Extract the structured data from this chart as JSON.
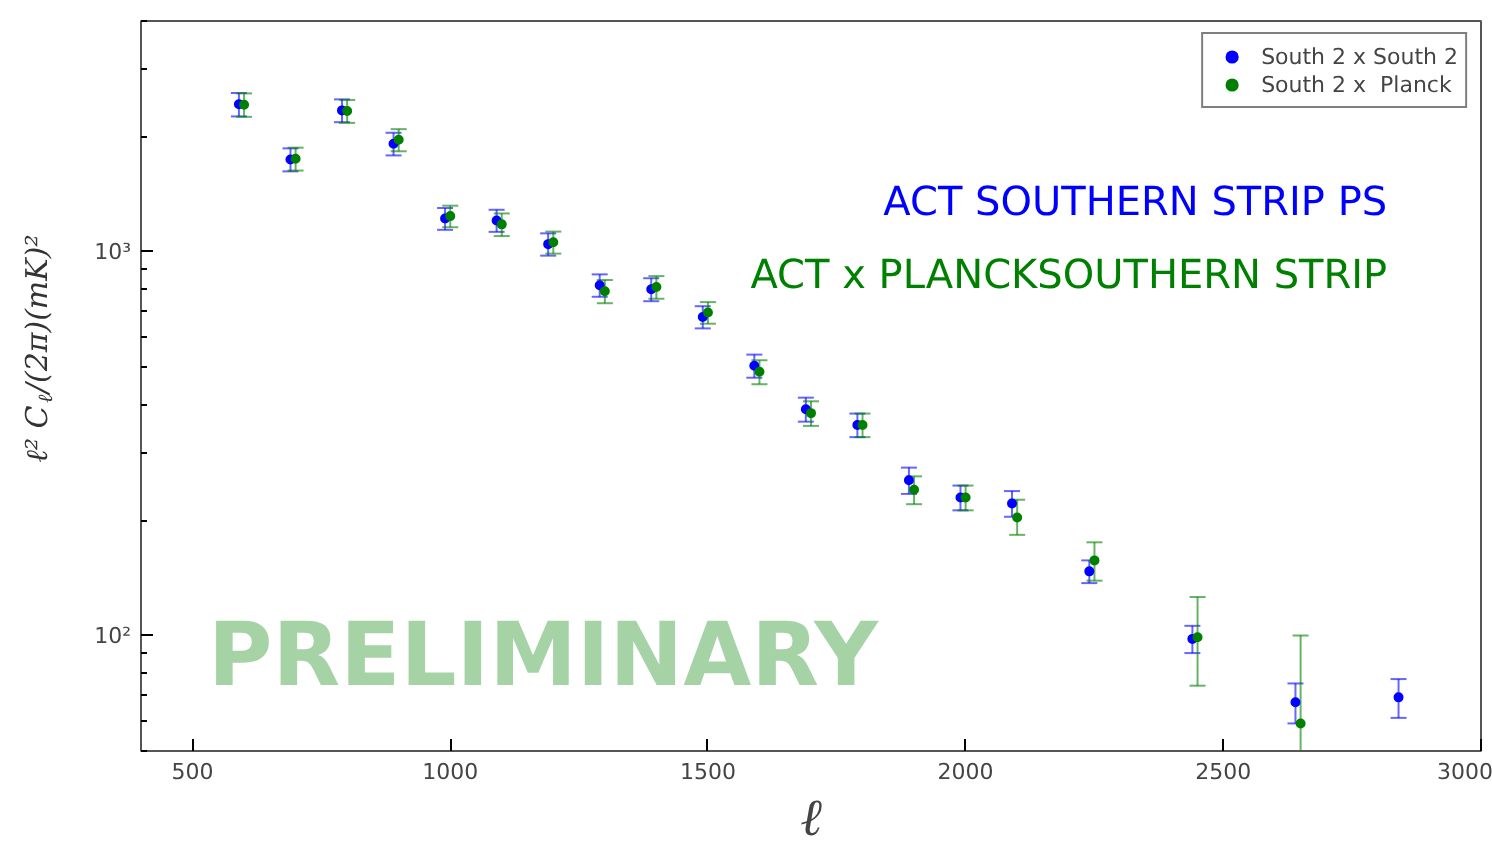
{
  "chart_data": {
    "type": "scatter",
    "xlabel": "ℓ",
    "ylabel": "ℓ² C$_{ℓ}$/(2π)(mK)²",
    "annotations": [
      "ACT SOUTHERN STRIP PS",
      "ACT x PLANCKSOUTHERN STRIP",
      "PRELIMINARY"
    ],
    "log": "y",
    "grid": false,
    "legend": "top right",
    "marker": "circle",
    "xlim": [
      400,
      3000
    ],
    "xticks": [
      500,
      1000,
      1500,
      2000,
      2500,
      3000
    ],
    "ylim": [
      50,
      4000
    ],
    "yticks": [
      {
        "value": 100,
        "label": "10²"
      },
      {
        "value": 1000,
        "label": "10³"
      }
    ],
    "series": [
      {
        "name": "South 2 x South 2",
        "color": "#0000ff",
        "x": [
          590,
          690,
          790,
          890,
          990,
          1090,
          1190,
          1290,
          1390,
          1490,
          1590,
          1690,
          1790,
          1890,
          1990,
          2090,
          2240,
          2440,
          2640,
          2840
        ],
        "values": [
          2426,
          1742,
          2339,
          1915,
          1222,
          1208,
          1048,
          819,
          799,
          677,
          505,
          389,
          354,
          254,
          229,
          221,
          147,
          98,
          67,
          69
        ],
        "errors": [
          170,
          120,
          160,
          130,
          80,
          80,
          70,
          55,
          55,
          45,
          35,
          28,
          25,
          20,
          17,
          17,
          10,
          8,
          8,
          8
        ]
      },
      {
        "name": "South 2 x  Planck",
        "color": "#008000",
        "x": [
          600,
          700,
          800,
          900,
          1000,
          1100,
          1200,
          1300,
          1400,
          1500,
          1600,
          1700,
          1800,
          1900,
          2000,
          2100,
          2250,
          2450,
          2650
        ],
        "values": [
          2420,
          1750,
          2330,
          1960,
          1240,
          1180,
          1060,
          790,
          810,
          695,
          487,
          380,
          354,
          240,
          229,
          203,
          157,
          99,
          59
        ],
        "errors": [
          170,
          120,
          160,
          130,
          80,
          80,
          70,
          55,
          55,
          45,
          35,
          28,
          25,
          20,
          17,
          [
            183,
            226
          ],
          [
            139,
            175
          ],
          [
            74,
            126
          ],
          [
            50,
            100
          ]
        ]
      }
    ]
  }
}
